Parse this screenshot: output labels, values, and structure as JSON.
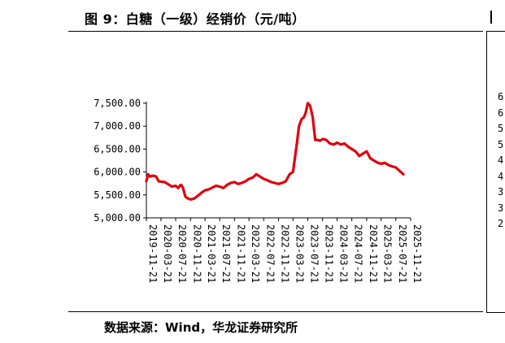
{
  "figure": {
    "title": "图 9：白糖（一级）经销价（元/吨）",
    "source": "数据来源：Wind，华龙证券研究所",
    "next_panel_ticks": [
      "6",
      "6",
      "5",
      "5",
      "4",
      "4",
      "3",
      "3",
      "2"
    ]
  },
  "chart_data": {
    "type": "line",
    "title": "图 9：白糖（一级）经销价（元/吨）",
    "xlabel": "",
    "ylabel": "",
    "ylim": [
      5000,
      7500
    ],
    "grid": false,
    "legend": "none",
    "yticks": [
      5000,
      5500,
      6000,
      6500,
      7000,
      7500
    ],
    "ytick_labels": [
      "5,000.00",
      "5,500.00",
      "6,000.00",
      "6,500.00",
      "7,000.00",
      "7,500.00"
    ],
    "xticks": [
      "2019-11-21",
      "2020-03-21",
      "2020-07-21",
      "2020-11-21",
      "2021-03-21",
      "2021-07-21",
      "2021-11-21",
      "2022-03-21",
      "2022-07-21",
      "2022-11-21",
      "2023-03-21",
      "2023-07-21",
      "2023-11-21",
      "2024-03-21",
      "2024-07-21",
      "2024-11-21",
      "2025-03-21",
      "2025-07-21",
      "2025-11-21"
    ],
    "series": [
      {
        "color": "#e0000c",
        "x": [
          "2019-11-21",
          "2019-12-05",
          "2019-12-20",
          "2020-01-15",
          "2020-02-10",
          "2020-03-01",
          "2020-03-21",
          "2020-04-21",
          "2020-05-21",
          "2020-06-21",
          "2020-07-21",
          "2020-08-10",
          "2020-08-25",
          "2020-09-05",
          "2020-09-20",
          "2020-10-10",
          "2020-11-01",
          "2020-11-21",
          "2020-12-21",
          "2021-01-21",
          "2021-02-21",
          "2021-03-21",
          "2021-04-21",
          "2021-05-21",
          "2021-06-21",
          "2021-07-21",
          "2021-08-21",
          "2021-09-21",
          "2021-10-21",
          "2021-11-21",
          "2021-12-21",
          "2022-01-21",
          "2022-02-21",
          "2022-03-21",
          "2022-04-21",
          "2022-05-21",
          "2022-06-21",
          "2022-07-21",
          "2022-08-21",
          "2022-09-21",
          "2022-10-21",
          "2022-11-21",
          "2022-12-21",
          "2023-01-21",
          "2023-02-21",
          "2023-03-21",
          "2023-04-21",
          "2023-05-10",
          "2023-05-31",
          "2023-06-21",
          "2023-07-05",
          "2023-07-21",
          "2023-08-10",
          "2023-08-31",
          "2023-09-21",
          "2023-10-10",
          "2023-10-31",
          "2023-11-21",
          "2023-12-21",
          "2024-01-21",
          "2024-02-21",
          "2024-03-21",
          "2024-04-21",
          "2024-05-21",
          "2024-06-21",
          "2024-07-21",
          "2024-08-21",
          "2024-09-21",
          "2024-10-21",
          "2024-11-21",
          "2024-12-21",
          "2025-01-21",
          "2025-02-21",
          "2025-03-21",
          "2025-04-21",
          "2025-05-21",
          "2025-06-21",
          "2025-07-21",
          "2025-08-10",
          "2025-08-31",
          "2025-09-21"
        ],
        "y": [
          5800,
          5950,
          5900,
          5920,
          5900,
          5800,
          5790,
          5780,
          5730,
          5680,
          5700,
          5650,
          5700,
          5720,
          5650,
          5460,
          5420,
          5400,
          5420,
          5480,
          5550,
          5600,
          5620,
          5660,
          5700,
          5680,
          5650,
          5720,
          5760,
          5780,
          5740,
          5760,
          5800,
          5850,
          5880,
          5950,
          5900,
          5850,
          5820,
          5780,
          5760,
          5740,
          5760,
          5800,
          5950,
          6000,
          6600,
          7000,
          7150,
          7200,
          7300,
          7500,
          7450,
          7200,
          6700,
          6700,
          6680,
          6720,
          6700,
          6620,
          6600,
          6640,
          6600,
          6620,
          6550,
          6500,
          6450,
          6350,
          6400,
          6450,
          6300,
          6250,
          6200,
          6180,
          6200,
          6150,
          6120,
          6100,
          6050,
          6000,
          5950
        ]
      }
    ]
  }
}
